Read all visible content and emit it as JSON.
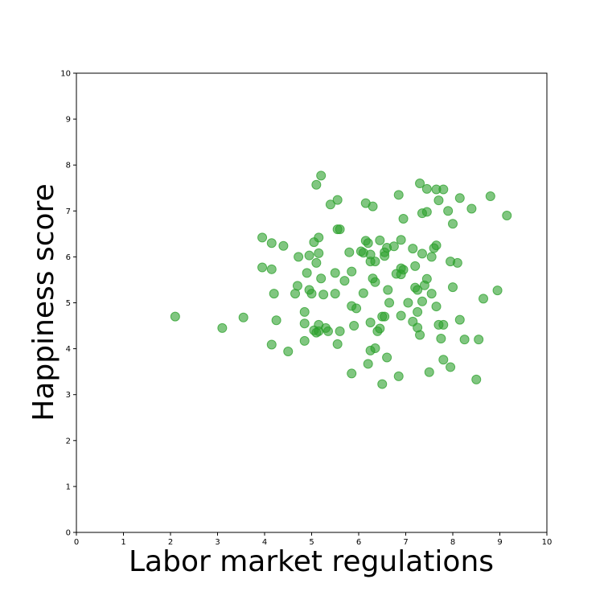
{
  "chart_data": {
    "type": "scatter",
    "xlabel": "Labor market regulations",
    "ylabel": "Happiness score",
    "xlim": [
      0,
      10
    ],
    "ylim": [
      0,
      10
    ],
    "xticks": [
      "0",
      "1",
      "2",
      "3",
      "4",
      "5",
      "6",
      "7",
      "8",
      "9",
      "10"
    ],
    "yticks": [
      "0",
      "1",
      "2",
      "3",
      "4",
      "5",
      "6",
      "7",
      "8",
      "9",
      "10"
    ],
    "grid": false,
    "marker_color": "#2ca02c",
    "points": [
      [
        2.1,
        4.7
      ],
      [
        3.1,
        4.45
      ],
      [
        3.55,
        4.68
      ],
      [
        3.95,
        6.42
      ],
      [
        3.95,
        5.77
      ],
      [
        4.15,
        6.3
      ],
      [
        4.15,
        5.73
      ],
      [
        4.15,
        4.09
      ],
      [
        4.2,
        5.2
      ],
      [
        4.25,
        4.62
      ],
      [
        4.4,
        6.24
      ],
      [
        4.5,
        3.94
      ],
      [
        4.65,
        5.2
      ],
      [
        4.7,
        5.37
      ],
      [
        4.72,
        6.0
      ],
      [
        4.85,
        4.8
      ],
      [
        4.85,
        4.55
      ],
      [
        4.85,
        4.17
      ],
      [
        4.9,
        5.65
      ],
      [
        4.95,
        6.03
      ],
      [
        4.95,
        5.28
      ],
      [
        5.0,
        5.2
      ],
      [
        5.05,
        6.32
      ],
      [
        5.05,
        4.4
      ],
      [
        5.1,
        7.57
      ],
      [
        5.1,
        5.87
      ],
      [
        5.1,
        4.35
      ],
      [
        5.15,
        6.42
      ],
      [
        5.15,
        6.08
      ],
      [
        5.15,
        4.52
      ],
      [
        5.15,
        4.38
      ],
      [
        5.2,
        7.77
      ],
      [
        5.2,
        5.53
      ],
      [
        5.25,
        5.18
      ],
      [
        5.3,
        4.45
      ],
      [
        5.35,
        4.38
      ],
      [
        5.4,
        7.14
      ],
      [
        5.5,
        5.65
      ],
      [
        5.5,
        5.2
      ],
      [
        5.55,
        7.24
      ],
      [
        5.55,
        6.6
      ],
      [
        5.55,
        4.1
      ],
      [
        5.6,
        6.6
      ],
      [
        5.6,
        4.38
      ],
      [
        5.7,
        5.48
      ],
      [
        5.8,
        6.1
      ],
      [
        5.85,
        5.68
      ],
      [
        5.85,
        4.93
      ],
      [
        5.85,
        3.46
      ],
      [
        5.9,
        4.5
      ],
      [
        5.95,
        4.88
      ],
      [
        6.05,
        6.12
      ],
      [
        6.1,
        6.09
      ],
      [
        6.1,
        5.21
      ],
      [
        6.15,
        7.17
      ],
      [
        6.15,
        6.35
      ],
      [
        6.2,
        6.3
      ],
      [
        6.2,
        3.67
      ],
      [
        6.25,
        6.05
      ],
      [
        6.25,
        5.9
      ],
      [
        6.25,
        4.57
      ],
      [
        6.25,
        3.96
      ],
      [
        6.3,
        7.1
      ],
      [
        6.3,
        5.53
      ],
      [
        6.35,
        5.9
      ],
      [
        6.35,
        5.45
      ],
      [
        6.35,
        4.01
      ],
      [
        6.4,
        4.38
      ],
      [
        6.45,
        6.36
      ],
      [
        6.45,
        4.44
      ],
      [
        6.5,
        4.7
      ],
      [
        6.5,
        3.23
      ],
      [
        6.55,
        6.1
      ],
      [
        6.55,
        6.02
      ],
      [
        6.55,
        4.7
      ],
      [
        6.6,
        6.2
      ],
      [
        6.6,
        3.81
      ],
      [
        6.62,
        5.28
      ],
      [
        6.65,
        5.0
      ],
      [
        6.75,
        6.23
      ],
      [
        6.8,
        5.63
      ],
      [
        6.85,
        7.35
      ],
      [
        6.85,
        3.4
      ],
      [
        6.9,
        6.37
      ],
      [
        6.9,
        5.75
      ],
      [
        6.9,
        5.62
      ],
      [
        6.9,
        4.72
      ],
      [
        6.95,
        6.83
      ],
      [
        6.95,
        5.72
      ],
      [
        7.05,
        5.0
      ],
      [
        7.15,
        6.18
      ],
      [
        7.15,
        4.59
      ],
      [
        7.2,
        5.8
      ],
      [
        7.2,
        5.33
      ],
      [
        7.25,
        5.28
      ],
      [
        7.25,
        4.46
      ],
      [
        7.25,
        4.8
      ],
      [
        7.3,
        7.6
      ],
      [
        7.3,
        4.3
      ],
      [
        7.35,
        6.95
      ],
      [
        7.35,
        6.07
      ],
      [
        7.35,
        5.03
      ],
      [
        7.4,
        5.38
      ],
      [
        7.45,
        7.48
      ],
      [
        7.45,
        6.98
      ],
      [
        7.45,
        5.52
      ],
      [
        7.5,
        3.49
      ],
      [
        7.55,
        6.0
      ],
      [
        7.55,
        5.2
      ],
      [
        7.6,
        6.19
      ],
      [
        7.65,
        7.47
      ],
      [
        7.65,
        6.25
      ],
      [
        7.65,
        4.92
      ],
      [
        7.7,
        7.23
      ],
      [
        7.7,
        4.52
      ],
      [
        7.75,
        4.22
      ],
      [
        7.8,
        7.47
      ],
      [
        7.8,
        4.52
      ],
      [
        7.8,
        3.76
      ],
      [
        7.9,
        7.0
      ],
      [
        7.95,
        5.9
      ],
      [
        7.95,
        3.6
      ],
      [
        8.0,
        6.72
      ],
      [
        8.0,
        5.34
      ],
      [
        8.1,
        5.87
      ],
      [
        8.15,
        7.28
      ],
      [
        8.15,
        4.63
      ],
      [
        8.25,
        4.2
      ],
      [
        8.4,
        7.05
      ],
      [
        8.5,
        3.33
      ],
      [
        8.55,
        4.2
      ],
      [
        8.65,
        5.09
      ],
      [
        8.8,
        7.32
      ],
      [
        8.95,
        5.27
      ],
      [
        9.15,
        6.9
      ]
    ]
  }
}
